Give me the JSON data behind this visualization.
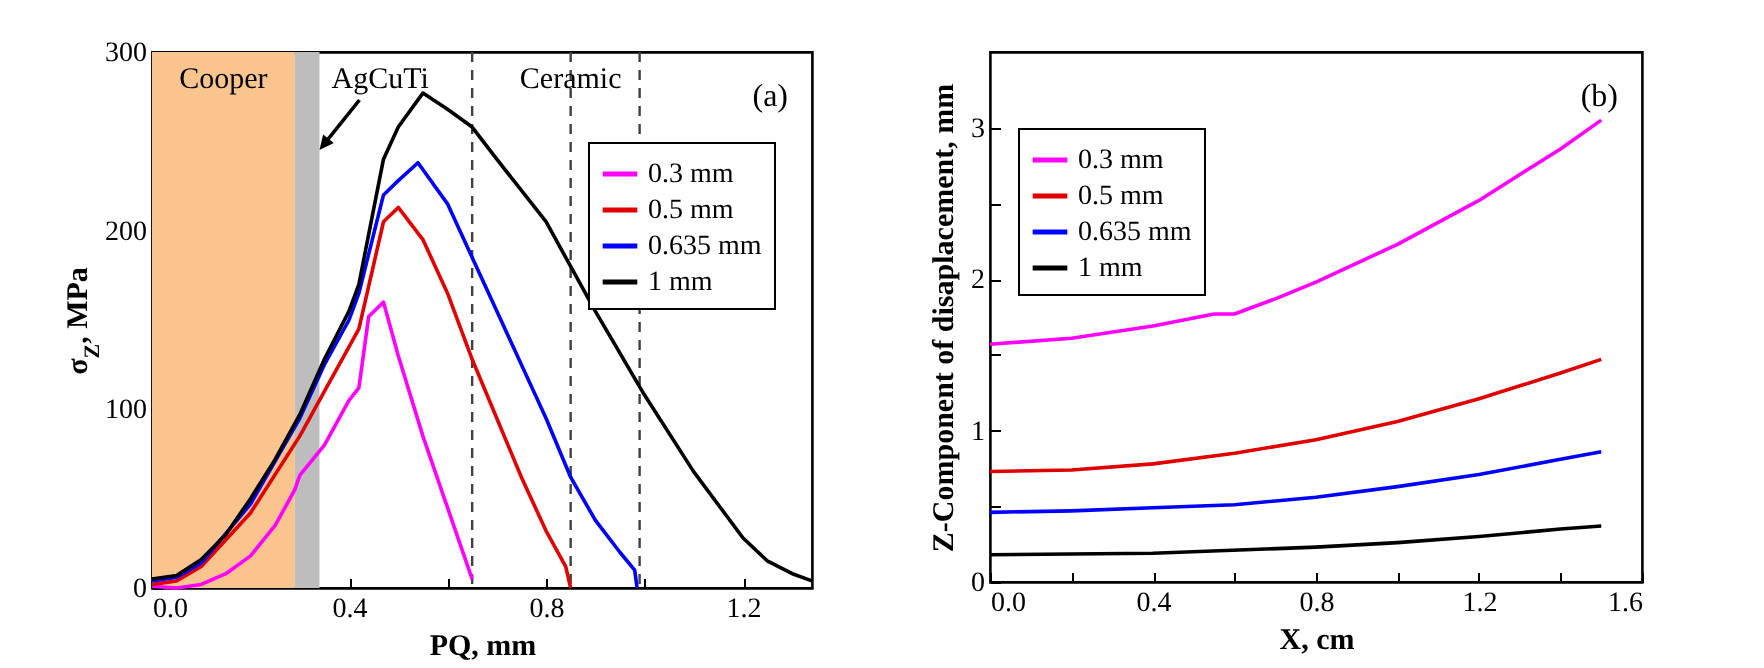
{
  "chart_data": [
    {
      "type": "line",
      "xlabel": "PQ, mm",
      "ylabel": "σ$_{Z}$, MPa",
      "xlim": [
        0,
        1.34
      ],
      "ylim": [
        0,
        300
      ],
      "xticks": [
        {
          "value": 0,
          "label": "0.0"
        },
        {
          "value": 0.2,
          "label": null
        },
        0.4,
        {
          "value": 0.6,
          "label": null
        },
        0.8,
        {
          "value": 1.0,
          "label": null
        },
        1.2
      ],
      "yticks": [
        0,
        {
          "value": 50,
          "label": null
        },
        100,
        {
          "value": 150,
          "label": null
        },
        200,
        {
          "value": 250,
          "label": null
        },
        300
      ],
      "series": [
        {
          "name": "0.3 mm",
          "color": "#ff00ff",
          "x": [
            0,
            0.05,
            0.1,
            0.15,
            0.2,
            0.25,
            0.29,
            0.3,
            0.35,
            0.4,
            0.42,
            0.44,
            0.47,
            0.5,
            0.55,
            0.6,
            0.65
          ],
          "values": [
            1,
            0,
            2,
            8,
            18,
            35,
            55,
            63,
            80,
            105,
            112,
            152,
            160,
            130,
            85,
            45,
            5
          ]
        },
        {
          "name": "0.5 mm",
          "color": "#e00000",
          "x": [
            0,
            0.05,
            0.1,
            0.2,
            0.3,
            0.35,
            0.4,
            0.42,
            0.47,
            0.5,
            0.55,
            0.6,
            0.65,
            0.7,
            0.75,
            0.8,
            0.84,
            0.85
          ],
          "values": [
            2,
            4,
            12,
            42,
            85,
            110,
            135,
            145,
            205,
            213,
            195,
            165,
            128,
            95,
            62,
            32,
            12,
            0
          ]
        },
        {
          "name": "0.635 mm",
          "color": "#0000ff",
          "x": [
            0,
            0.05,
            0.1,
            0.2,
            0.3,
            0.35,
            0.4,
            0.42,
            0.47,
            0.5,
            0.54,
            0.6,
            0.65,
            0.7,
            0.8,
            0.85,
            0.9,
            0.95,
            0.98,
            0.985
          ],
          "values": [
            4,
            6,
            14,
            47,
            95,
            125,
            150,
            165,
            220,
            228,
            238,
            215,
            185,
            155,
            95,
            62,
            38,
            20,
            10,
            0
          ]
        },
        {
          "name": "1 mm",
          "color": "#000000",
          "x": [
            0,
            0.05,
            0.1,
            0.15,
            0.2,
            0.25,
            0.3,
            0.35,
            0.4,
            0.42,
            0.47,
            0.5,
            0.55,
            0.6,
            0.65,
            0.7,
            0.8,
            0.85,
            0.9,
            1.0,
            1.1,
            1.2,
            1.25,
            1.3,
            1.34
          ],
          "values": [
            5,
            7,
            16,
            30,
            50,
            72,
            97,
            128,
            155,
            170,
            240,
            258,
            277,
            268,
            258,
            240,
            205,
            180,
            155,
            108,
            65,
            28,
            15,
            8,
            4
          ]
        }
      ],
      "bands": [
        {
          "axis": "x",
          "from": 0,
          "to": 0.29,
          "label": "Cooper",
          "color": "#f9c48e"
        },
        {
          "axis": "x",
          "from": 0.29,
          "to": 0.34,
          "label": "AgCuTi",
          "color": "#bdbdbd"
        }
      ],
      "ref_lines": [
        {
          "axis": "x",
          "value": 0.65,
          "color": "#404040",
          "line_style": "dashed"
        },
        {
          "axis": "x",
          "value": 0.85,
          "color": "#404040",
          "line_style": "dashed",
          "label": "Ceramic"
        },
        {
          "axis": "x",
          "value": 0.99,
          "color": "#404040",
          "line_style": "dashed"
        }
      ],
      "annotations": [
        "(a)"
      ],
      "legend": "top right",
      "grid": false
    },
    {
      "type": "line",
      "xlabel": "X, cm",
      "ylabel": "Z-Component of disaplacement, mm",
      "xlim": [
        0,
        1.6
      ],
      "ylim": [
        0,
        3.5
      ],
      "xticks": [
        {
          "value": 0,
          "label": "0.0"
        },
        {
          "value": 0.2,
          "label": null
        },
        0.4,
        {
          "value": 0.6,
          "label": null
        },
        0.8,
        {
          "value": 1.0,
          "label": null
        },
        1.2,
        {
          "value": 1.4,
          "label": null
        },
        1.6
      ],
      "yticks": [
        0,
        {
          "value": 0.5,
          "label": null
        },
        1,
        {
          "value": 1.5,
          "label": null
        },
        2,
        {
          "value": 2.5,
          "label": null
        },
        3
      ],
      "series": [
        {
          "name": "0.3 mm",
          "color": "#ff00ff",
          "x": [
            0,
            0.2,
            0.4,
            0.55,
            0.6,
            0.7,
            0.8,
            1.0,
            1.2,
            1.4,
            1.5
          ],
          "values": [
            1.57,
            1.61,
            1.69,
            1.77,
            1.77,
            1.87,
            1.98,
            2.23,
            2.52,
            2.86,
            3.05
          ]
        },
        {
          "name": "0.5 mm",
          "color": "#e00000",
          "x": [
            0,
            0.2,
            0.4,
            0.6,
            0.8,
            1.0,
            1.2,
            1.4,
            1.5
          ],
          "values": [
            0.73,
            0.74,
            0.78,
            0.85,
            0.94,
            1.06,
            1.21,
            1.38,
            1.47
          ]
        },
        {
          "name": "0.635 mm",
          "color": "#0000ff",
          "x": [
            0,
            0.2,
            0.4,
            0.6,
            0.8,
            1.0,
            1.2,
            1.4,
            1.5
          ],
          "values": [
            0.46,
            0.47,
            0.49,
            0.51,
            0.56,
            0.63,
            0.71,
            0.81,
            0.86
          ]
        },
        {
          "name": "1 mm",
          "color": "#000000",
          "x": [
            0,
            0.4,
            0.8,
            1.0,
            1.2,
            1.4,
            1.5
          ],
          "values": [
            0.18,
            0.19,
            0.23,
            0.26,
            0.3,
            0.35,
            0.37
          ]
        }
      ],
      "annotations": [
        "(b)"
      ],
      "legend": "top left",
      "grid": false
    }
  ]
}
